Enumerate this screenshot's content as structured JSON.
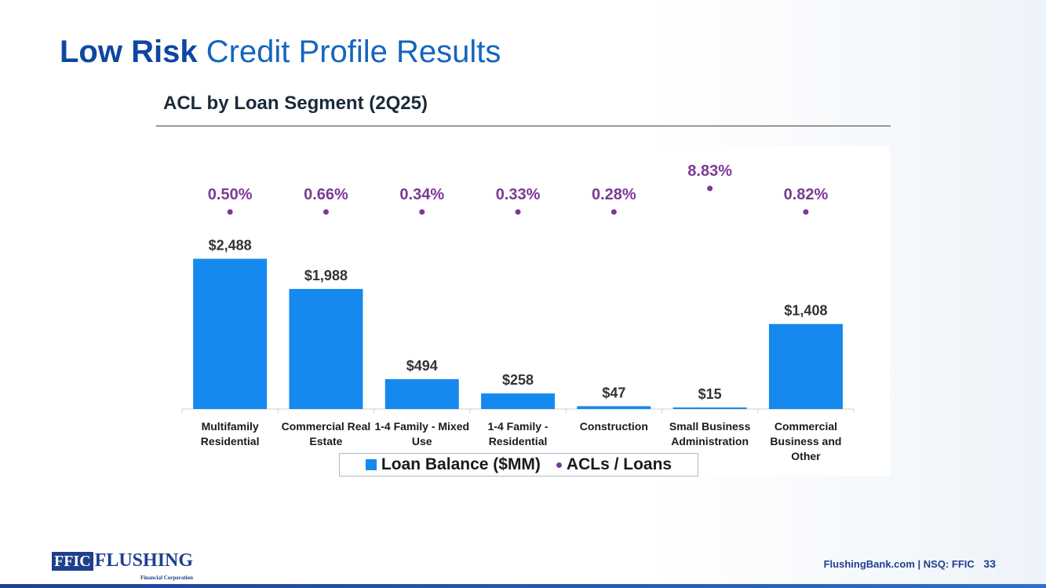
{
  "title_bold": "Low Risk",
  "title_rest": "Credit Profile Results",
  "subtitle": "ACL by Loan Segment (2Q25)",
  "colors": {
    "bar": "#1589ee",
    "dot": "#7b3a96",
    "title": "#1565c0"
  },
  "chart_data": {
    "type": "bar",
    "categories": [
      [
        "Multifamily",
        "Residential"
      ],
      [
        "Commercial Real",
        "Estate"
      ],
      [
        "1-4 Family - Mixed",
        "Use"
      ],
      [
        "1-4 Family -",
        "Residential"
      ],
      [
        "Construction"
      ],
      [
        "Small Business",
        "Administration"
      ],
      [
        "Commercial",
        "Business and",
        "Other"
      ]
    ],
    "series": [
      {
        "name": "Loan Balance ($MM)",
        "type": "bar",
        "values": [
          2488,
          1988,
          494,
          258,
          47,
          15,
          1408
        ],
        "labels": [
          "$2,488",
          "$1,988",
          "$494",
          "$258",
          "$47",
          "$15",
          "$1,408"
        ]
      },
      {
        "name": "ACLs / Loans",
        "type": "scatter",
        "values": [
          0.5,
          0.66,
          0.34,
          0.33,
          0.28,
          8.83,
          0.82
        ],
        "labels": [
          "0.50%",
          "0.66%",
          "0.34%",
          "0.33%",
          "0.28%",
          "8.83%",
          "0.82%"
        ]
      }
    ],
    "ylim": [
      0,
      2600
    ],
    "legend_position": "bottom",
    "grid": false
  },
  "footer": {
    "logo_box": "FFIC",
    "logo_text": "FLUSHING",
    "logo_sub": "Financial Corporation",
    "site": "FlushingBank.com",
    "separator": "|",
    "ticker": "NSQ: FFIC",
    "page": "33"
  }
}
